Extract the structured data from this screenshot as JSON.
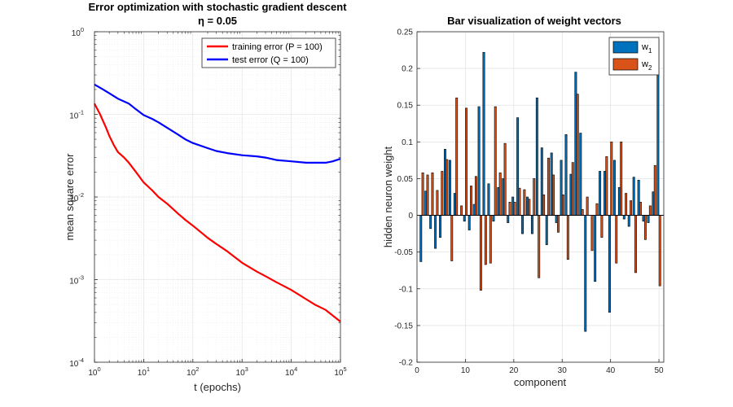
{
  "chart_data": [
    {
      "type": "line",
      "title": "Error optimization with stochastic gradient descent",
      "subtitle": "η = 0.05",
      "xlabel": "t (epochs)",
      "ylabel": "mean square error",
      "xscale": "log",
      "yscale": "log",
      "xlim": [
        1,
        100000
      ],
      "ylim": [
        0.0001,
        1
      ],
      "grid": true,
      "legend_position": "top-right",
      "x_ticks": [
        {
          "base": "10",
          "exp": "0"
        },
        {
          "base": "10",
          "exp": "1"
        },
        {
          "base": "10",
          "exp": "2"
        },
        {
          "base": "10",
          "exp": "3"
        },
        {
          "base": "10",
          "exp": "4"
        },
        {
          "base": "10",
          "exp": "5"
        }
      ],
      "y_ticks": [
        {
          "base": "10",
          "exp": "-4"
        },
        {
          "base": "10",
          "exp": "-3"
        },
        {
          "base": "10",
          "exp": "-2"
        },
        {
          "base": "10",
          "exp": "-1"
        },
        {
          "base": "10",
          "exp": "0"
        }
      ],
      "series": [
        {
          "name": "training error (P = 100)",
          "color": "#ff0000",
          "x": [
            1,
            1.3,
            1.7,
            2,
            2.5,
            3,
            4,
            5,
            7,
            10,
            15,
            20,
            30,
            50,
            70,
            100,
            200,
            300,
            500,
            1000,
            2000,
            3000,
            5000,
            10000,
            20000,
            30000,
            50000,
            100000
          ],
          "y": [
            0.135,
            0.1,
            0.07,
            0.055,
            0.042,
            0.035,
            0.03,
            0.026,
            0.02,
            0.015,
            0.012,
            0.01,
            0.0083,
            0.0063,
            0.0053,
            0.0045,
            0.0032,
            0.0027,
            0.0022,
            0.0016,
            0.00125,
            0.0011,
            0.00093,
            0.00075,
            0.00058,
            0.0005,
            0.00043,
            0.00031
          ]
        },
        {
          "name": "test error (Q = 100)",
          "color": "#0000ff",
          "x": [
            1,
            1.5,
            2,
            3,
            5,
            7,
            10,
            15,
            20,
            30,
            50,
            70,
            100,
            200,
            300,
            500,
            1000,
            2000,
            3000,
            5000,
            10000,
            20000,
            30000,
            50000,
            70000,
            100000
          ],
          "y": [
            0.23,
            0.2,
            0.18,
            0.155,
            0.135,
            0.115,
            0.098,
            0.088,
            0.08,
            0.069,
            0.057,
            0.05,
            0.045,
            0.039,
            0.036,
            0.034,
            0.032,
            0.031,
            0.03,
            0.028,
            0.027,
            0.026,
            0.026,
            0.026,
            0.027,
            0.029
          ]
        }
      ]
    },
    {
      "type": "bar",
      "title": "Bar visualization of weight vectors",
      "xlabel": "component",
      "ylabel": "hidden neuron weight",
      "xlim": [
        0,
        51
      ],
      "ylim": [
        -0.2,
        0.25
      ],
      "grid": true,
      "legend_position": "top-right",
      "x_ticks": [
        "0",
        "10",
        "20",
        "30",
        "40",
        "50"
      ],
      "y_ticks": [
        "-0.2",
        "-0.15",
        "-0.1",
        "-0.05",
        "0",
        "0.05",
        "0.1",
        "0.15",
        "0.2",
        "0.25"
      ],
      "categories": [
        1,
        2,
        3,
        4,
        5,
        6,
        7,
        8,
        9,
        10,
        11,
        12,
        13,
        14,
        15,
        16,
        17,
        18,
        19,
        20,
        21,
        22,
        23,
        24,
        25,
        26,
        27,
        28,
        29,
        30,
        31,
        32,
        33,
        34,
        35,
        36,
        37,
        38,
        39,
        40,
        41,
        42,
        43,
        44,
        45,
        46,
        47,
        48,
        49,
        50
      ],
      "series": [
        {
          "name": "w",
          "name_sub": "1",
          "color": "#0072bd",
          "values": [
            -0.063,
            0.033,
            -0.018,
            -0.045,
            -0.03,
            0.09,
            0.075,
            0.03,
            0.0,
            -0.008,
            -0.02,
            0.015,
            0.148,
            0.222,
            0.043,
            -0.008,
            0.038,
            0.05,
            -0.01,
            0.025,
            0.133,
            -0.025,
            0.025,
            -0.025,
            0.16,
            0.092,
            -0.04,
            0.085,
            -0.01,
            0.075,
            0.11,
            0.056,
            0.195,
            0.112,
            -0.158,
            0.0,
            -0.09,
            0.06,
            0.06,
            -0.132,
            0.075,
            0.038,
            -0.005,
            -0.015,
            0.052,
            0.048,
            -0.008,
            -0.01,
            0.032,
            0.24
          ]
        },
        {
          "name": "w",
          "name_sub": "2",
          "color": "#d95319",
          "values": [
            0.058,
            0.055,
            0.058,
            0.034,
            0.06,
            0.076,
            -0.062,
            0.16,
            0.013,
            0.146,
            0.04,
            0.053,
            -0.102,
            -0.067,
            -0.065,
            0.148,
            0.058,
            0.098,
            0.018,
            0.018,
            0.037,
            0.035,
            0.022,
            0.05,
            -0.085,
            0.028,
            0.078,
            0.055,
            -0.023,
            0.028,
            -0.06,
            0.072,
            0.165,
            0.008,
            0.025,
            -0.048,
            0.016,
            -0.03,
            0.08,
            0.1,
            -0.065,
            0.1,
            0.03,
            0.02,
            -0.078,
            0.018,
            -0.033,
            0.013,
            0.068,
            -0.096
          ]
        }
      ]
    }
  ]
}
